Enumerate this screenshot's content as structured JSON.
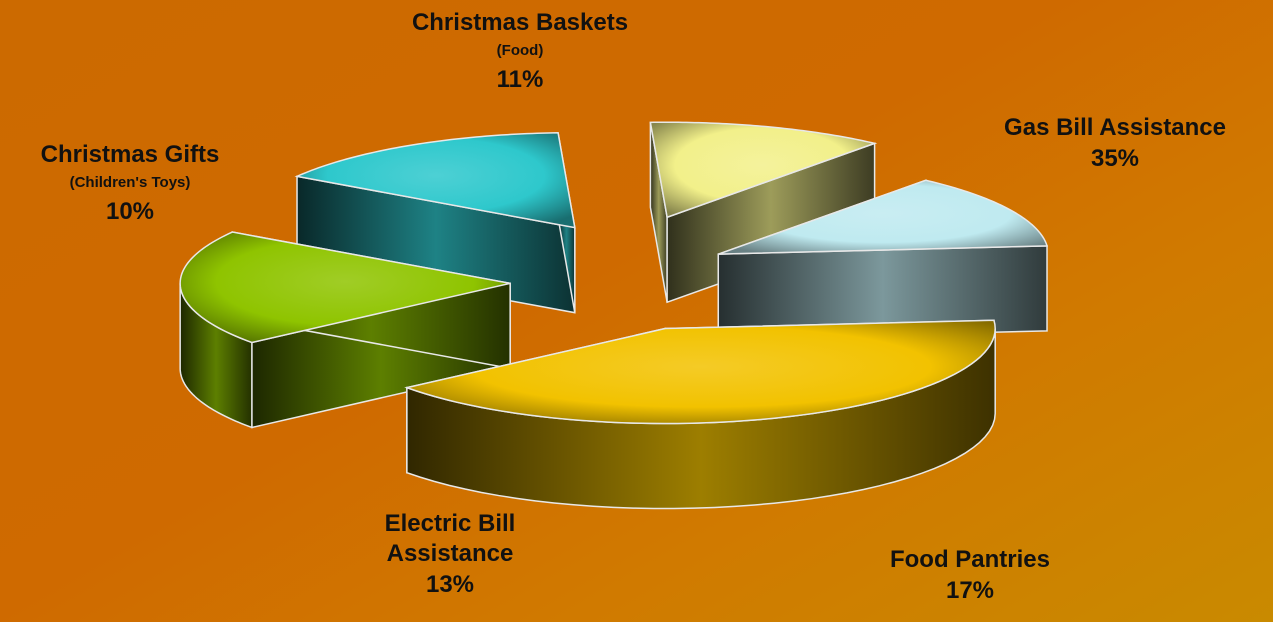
{
  "chart_data": {
    "type": "pie",
    "style": "exploded-3d",
    "slices": [
      {
        "label": "Gas Bill Assistance",
        "sublabel": "",
        "value": 35,
        "value_label": "35%",
        "color": "#f2c200"
      },
      {
        "label": "Food Pantries",
        "sublabel": "",
        "value": 17,
        "value_label": "17%",
        "color": "#8fc400"
      },
      {
        "label": "Electric Bill Assistance",
        "sublabel": "",
        "value": 13,
        "value_label": "13%",
        "color": "#2ec8cc"
      },
      {
        "label": "Christmas Gifts",
        "sublabel": "(Children's Toys)",
        "value": 10,
        "value_label": "10%",
        "color": "#f2f08a"
      },
      {
        "label": "Christmas Baskets",
        "sublabel": "(Food)",
        "value": 11,
        "value_label": "11%",
        "color": "#bfeaf0"
      }
    ]
  }
}
